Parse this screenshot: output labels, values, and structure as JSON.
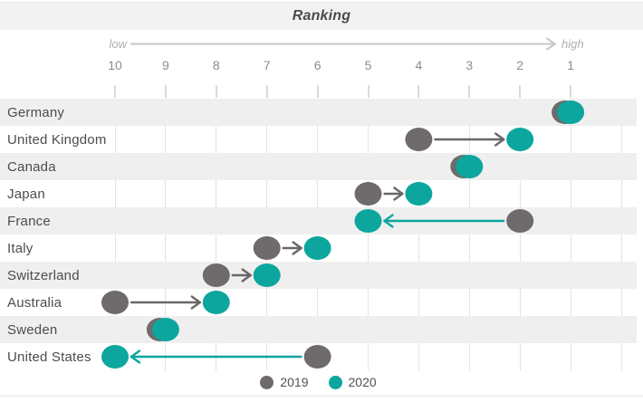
{
  "title": "Ranking",
  "axis": {
    "low_label": "low",
    "high_label": "high",
    "ticks": [
      10,
      9,
      8,
      7,
      6,
      5,
      4,
      3,
      2,
      1
    ]
  },
  "legend": {
    "position": "bottom",
    "items": [
      {
        "label": "2019",
        "color": "#6f6a6b"
      },
      {
        "label": "2020",
        "color": "#0ca69e"
      }
    ]
  },
  "colors": {
    "series_2019": "#6f6a6b",
    "series_2020": "#0ca69e",
    "arrow_improve": "#6b6667",
    "arrow_decline": "#0ca69e",
    "banner_bg": "#f2f2f2",
    "stripe_bg": "#efefef",
    "gridline": "#e3e3e3",
    "axis_text": "#8c8c8c",
    "label_text": "#4d4d4d",
    "direction_arrow": "#c6c6c6"
  },
  "chart_data": {
    "type": "scatter",
    "subtype": "arrow-dot-plot",
    "title": "Ranking",
    "categories": [
      "Germany",
      "United Kingdom",
      "Canada",
      "Japan",
      "France",
      "Italy",
      "Switzerland",
      "Australia",
      "Sweden",
      "United States"
    ],
    "series": [
      {
        "name": "2019",
        "color": "#6f6a6b",
        "values": [
          1,
          4,
          3,
          5,
          2,
          7,
          8,
          10,
          9,
          6
        ]
      },
      {
        "name": "2020",
        "color": "#0ca69e",
        "values": [
          1,
          2,
          3,
          4,
          5,
          6,
          7,
          8,
          9,
          10
        ]
      }
    ],
    "x_axis": {
      "range": [
        10,
        1
      ],
      "reversed": true,
      "low_label": "low",
      "high_label": "high"
    },
    "arrows": [
      {
        "category": "United Kingdom",
        "from": 4,
        "to": 2,
        "direction": "right",
        "color": "#6b6667"
      },
      {
        "category": "Japan",
        "from": 5,
        "to": 4,
        "direction": "right",
        "color": "#6b6667"
      },
      {
        "category": "France",
        "from": 2,
        "to": 5,
        "direction": "left",
        "color": "#0ca69e"
      },
      {
        "category": "Italy",
        "from": 7,
        "to": 6,
        "direction": "right",
        "color": "#6b6667"
      },
      {
        "category": "Switzerland",
        "from": 8,
        "to": 7,
        "direction": "right",
        "color": "#6b6667"
      },
      {
        "category": "Australia",
        "from": 10,
        "to": 8,
        "direction": "right",
        "color": "#6b6667"
      },
      {
        "category": "United States",
        "from": 6,
        "to": 10,
        "direction": "left",
        "color": "#0ca69e"
      }
    ],
    "grid": true,
    "legend_position": "bottom"
  }
}
